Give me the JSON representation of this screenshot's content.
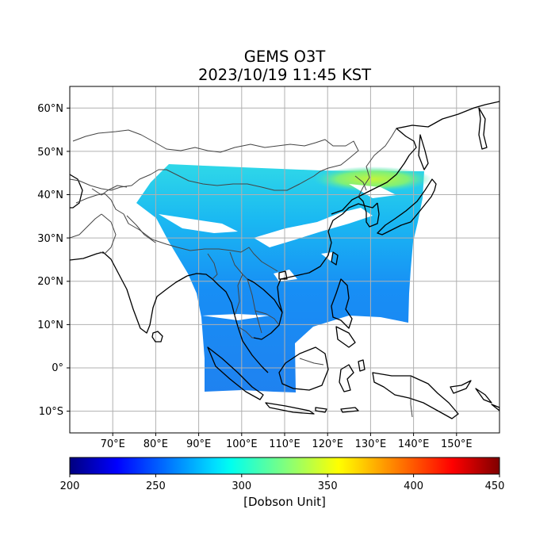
{
  "title": "GEMS O3T",
  "subtitle": "2023/10/19 11:45 KST",
  "map": {
    "lon_range": [
      60,
      160
    ],
    "lat_range": [
      -15,
      65
    ],
    "lon_ticks": [
      70,
      80,
      90,
      100,
      110,
      120,
      130,
      140,
      150
    ],
    "lon_tick_labels": [
      "70°E",
      "80°E",
      "90°E",
      "100°E",
      "110°E",
      "120°E",
      "130°E",
      "140°E",
      "150°E"
    ],
    "lat_ticks": [
      60,
      50,
      40,
      30,
      20,
      10,
      0,
      -10
    ],
    "lat_tick_labels": [
      "60°N",
      "50°N",
      "40°N",
      "30°N",
      "20°N",
      "10°N",
      "0°",
      "10°S"
    ],
    "grid": true
  },
  "colorbar": {
    "label": "[Dobson Unit]",
    "min": 200,
    "max": 450,
    "ticks": [
      200,
      250,
      300,
      350,
      400,
      450
    ],
    "tick_labels": [
      "200",
      "250",
      "300",
      "350",
      "400",
      "450"
    ],
    "colormap": "jet"
  }
}
